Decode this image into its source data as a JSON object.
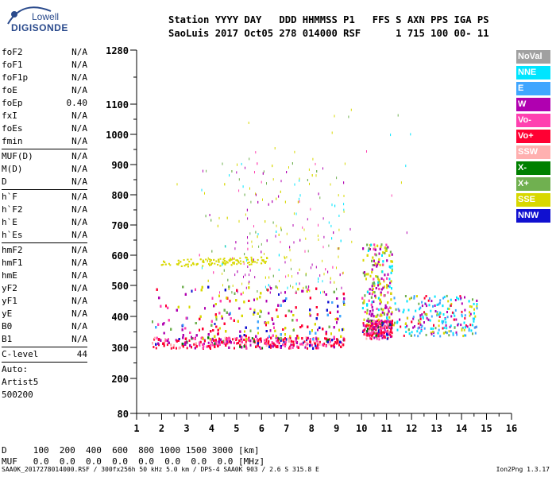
{
  "logo": {
    "line1": "Lowell",
    "line2": "DIGISONDE"
  },
  "header": {
    "line1": "Station YYYY DAY   DDD HHMMSS P1   FFS S AXN PPS IGA PS",
    "line2": "SaoLuis 2017 Oct05 278 014000 RSF      1 715 100 00- 11"
  },
  "params": [
    {
      "k": "foF2",
      "v": "N/A"
    },
    {
      "k": "foF1",
      "v": "N/A"
    },
    {
      "k": "foF1p",
      "v": "N/A"
    },
    {
      "k": "foE",
      "v": "N/A"
    },
    {
      "k": "foEp",
      "v": "0.40"
    },
    {
      "k": "fxI",
      "v": "N/A"
    },
    {
      "k": "foEs",
      "v": "N/A"
    },
    {
      "k": "fmin",
      "v": "N/A"
    },
    {
      "sep": true
    },
    {
      "k": "MUF(D)",
      "v": "N/A"
    },
    {
      "k": "M(D)",
      "v": "N/A"
    },
    {
      "k": "D",
      "v": "N/A"
    },
    {
      "sep": true
    },
    {
      "k": "h`F",
      "v": "N/A"
    },
    {
      "k": "h`F2",
      "v": "N/A"
    },
    {
      "k": "h`E",
      "v": "N/A"
    },
    {
      "k": "h`Es",
      "v": "N/A"
    },
    {
      "sep": true
    },
    {
      "k": "hmF2",
      "v": "N/A"
    },
    {
      "k": "hmF1",
      "v": "N/A"
    },
    {
      "k": "hmE",
      "v": "N/A"
    },
    {
      "k": "yF2",
      "v": "N/A"
    },
    {
      "k": "yF1",
      "v": "N/A"
    },
    {
      "k": "yE",
      "v": "N/A"
    },
    {
      "k": "B0",
      "v": "N/A"
    },
    {
      "k": "B1",
      "v": "N/A"
    },
    {
      "sep": true
    },
    {
      "k": "C-level",
      "v": "44"
    },
    {
      "sep": true
    },
    {
      "text": "Auto:"
    },
    {
      "text": "Artist5"
    },
    {
      "text": "500200"
    }
  ],
  "legend": [
    {
      "label": "NoVal",
      "color": "#a0a0a0"
    },
    {
      "label": "NNE",
      "color": "#00e5ff"
    },
    {
      "label": "E",
      "color": "#3fa6ff"
    },
    {
      "label": "W",
      "color": "#b000b0"
    },
    {
      "label": "Vo-",
      "color": "#ff40b0"
    },
    {
      "label": "Vo+",
      "color": "#ff0033"
    },
    {
      "label": "SSW",
      "color": "#ffb0b0"
    },
    {
      "label": "X-",
      "color": "#008000"
    },
    {
      "label": "X+",
      "color": "#70b050"
    },
    {
      "label": "SSE",
      "color": "#d8d800"
    },
    {
      "label": "NNW",
      "color": "#1010d0"
    }
  ],
  "bottom": {
    "d_line": "D     100  200  400  600  800 1000 1500 3000 [km]",
    "muf_line": "MUF   0.0  0.0  0.0  0.0  0.0  0.0  0.0  0.0 [MHz]"
  },
  "footer": {
    "left": "SAA0K_2017278014000.RSF / 300fx256h 50 kHz 5.0 km / DPS-4 SAA0K 903 / 2.6 S 315.8 E",
    "right": "Ion2Png 1.3.17"
  },
  "chart_data": {
    "type": "scatter",
    "x_ticks": [
      "1",
      "2",
      "3",
      "4",
      "5",
      "6",
      "7",
      "8",
      "9",
      "10",
      "11",
      "12",
      "13",
      "14",
      "15",
      "16"
    ],
    "y_ticks": [
      "80",
      "200",
      "300",
      "400",
      "500",
      "600",
      "700",
      "800",
      "900",
      "1000",
      "1100",
      "1280"
    ],
    "xlim": [
      1,
      16
    ],
    "ylim": [
      80,
      1280
    ],
    "grid": false,
    "legend_position": "right",
    "clusters": [
      {
        "name": "main-F-trace",
        "x": [
          1.6,
          9.3
        ],
        "y": [
          300,
          330
        ],
        "dominant": "Vo+"
      },
      {
        "name": "spread-body-low",
        "x": [
          1.6,
          9.3
        ],
        "y": [
          330,
          480
        ],
        "dominant": "W"
      },
      {
        "name": "high-region-echoes",
        "x": [
          10.0,
          11.2
        ],
        "y": [
          330,
          700
        ],
        "dominant": "SSE"
      },
      {
        "name": "tail-echoes",
        "x": [
          11.2,
          14.6
        ],
        "y": [
          340,
          470
        ],
        "dominant": "NNE"
      },
      {
        "name": "second-hop-trace",
        "x": [
          1.9,
          6.2
        ],
        "y": [
          560,
          590
        ],
        "dominant": "SSE"
      }
    ]
  }
}
